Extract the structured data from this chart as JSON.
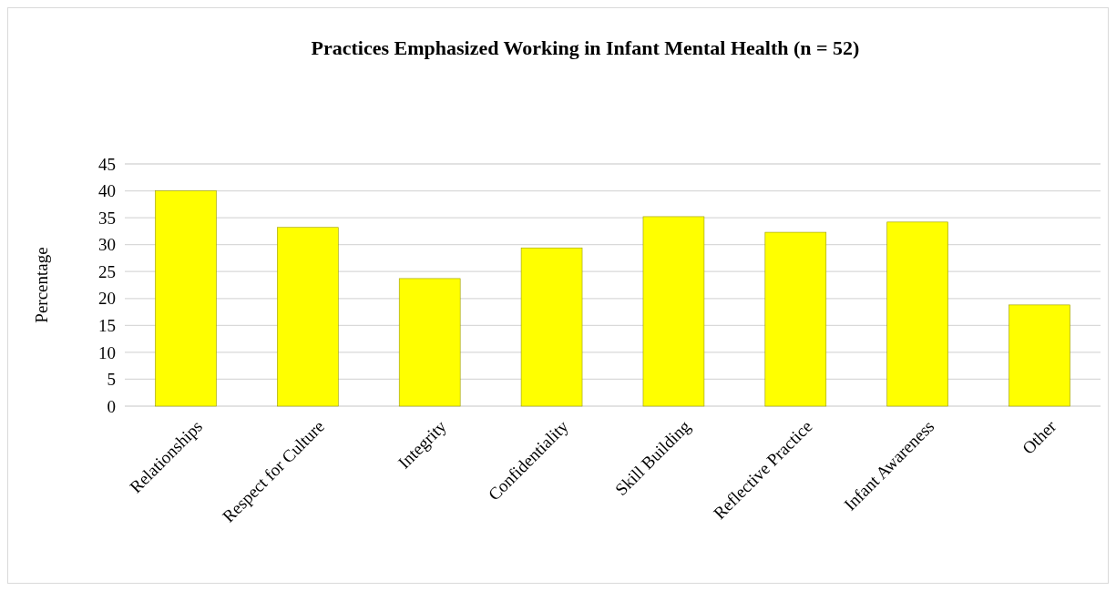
{
  "chart_data": {
    "type": "bar",
    "title": "Practices Emphasized Working in Infant Mental Health (n = 52)",
    "ylabel": "Percentage",
    "categories": [
      "Relationships",
      "Respect for Culture",
      "Integrity",
      "Confidentiality",
      "Skill Building",
      "Reflective Practice",
      "Infant Awareness",
      "Other"
    ],
    "values": [
      40,
      33.2,
      23.7,
      29.4,
      35.2,
      32.3,
      34.2,
      18.8
    ],
    "color": "#ffff00",
    "ylim": [
      0,
      45
    ],
    "yticks": [
      0,
      5,
      10,
      15,
      20,
      25,
      30,
      35,
      40,
      45
    ],
    "grid": "y"
  }
}
